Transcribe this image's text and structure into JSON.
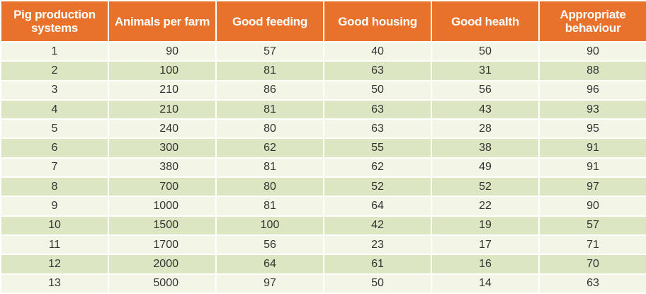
{
  "table": {
    "headers": [
      "Pig production systems",
      "Animals per farm",
      "Good feeding",
      "Good housing",
      "Good health",
      "Appropriate behaviour"
    ],
    "rows": [
      [
        "1",
        "90",
        "57",
        "40",
        "50",
        "90"
      ],
      [
        "2",
        "100",
        "81",
        "63",
        "31",
        "88"
      ],
      [
        "3",
        "210",
        "86",
        "50",
        "56",
        "96"
      ],
      [
        "4",
        "210",
        "81",
        "63",
        "43",
        "93"
      ],
      [
        "5",
        "240",
        "80",
        "63",
        "28",
        "95"
      ],
      [
        "6",
        "300",
        "62",
        "55",
        "38",
        "91"
      ],
      [
        "7",
        "380",
        "81",
        "62",
        "49",
        "91"
      ],
      [
        "8",
        "700",
        "80",
        "52",
        "52",
        "97"
      ],
      [
        "9",
        "1000",
        "81",
        "64",
        "22",
        "90"
      ],
      [
        "10",
        "1500",
        "100",
        "42",
        "19",
        "57"
      ],
      [
        "11",
        "1700",
        "56",
        "23",
        "17",
        "71"
      ],
      [
        "12",
        "2000",
        "64",
        "61",
        "16",
        "70"
      ],
      [
        "13",
        "5000",
        "97",
        "50",
        "14",
        "63"
      ]
    ]
  },
  "colors": {
    "header_bg": "#e8722b",
    "header_text": "#ffffff",
    "row_light": "#f3f5e6",
    "row_dark": "#dce6c2",
    "cell_text": "#333333"
  }
}
